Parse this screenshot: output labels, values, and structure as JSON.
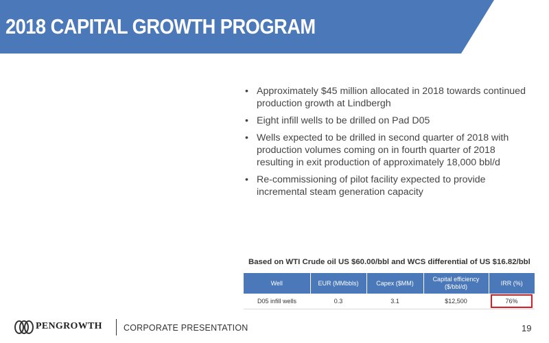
{
  "header": {
    "title": "2018 CAPITAL GROWTH PROGRAM"
  },
  "bullets": [
    "Approximately $45 million allocated in 2018 towards continued production growth at Lindbergh",
    "Eight infill wells to be drilled on Pad D05",
    "Wells expected to be drilled in second quarter of 2018 with production volumes coming on in fourth quarter of 2018 resulting in exit production of approximately 18,000 bbl/d",
    "Re-commissioning of pilot facility expected to provide incremental steam generation capacity"
  ],
  "bullet_marker": "•",
  "assumption": "Based on WTI  Crude oil US $60.00/bbl and WCS differential of US $16.82/bbl",
  "table": {
    "headers": [
      "Well",
      "EUR (MMbbls)",
      "Capex ($MM)",
      "Capital efficiency ($/bbl/d)",
      "IRR (%)"
    ],
    "rows": [
      [
        "D05 infill wells",
        "0.3",
        "3.1",
        "$12,500",
        "76%"
      ]
    ]
  },
  "footer": {
    "brand": "PENGROWTH",
    "logo_icon": "pengrowth-logo-icon",
    "section": "CORPORATE PRESENTATION",
    "page_number": "19"
  },
  "colors": {
    "header_bar": "#4a78b8",
    "table_header": "#4a78b8",
    "highlight": "#e0191f"
  }
}
